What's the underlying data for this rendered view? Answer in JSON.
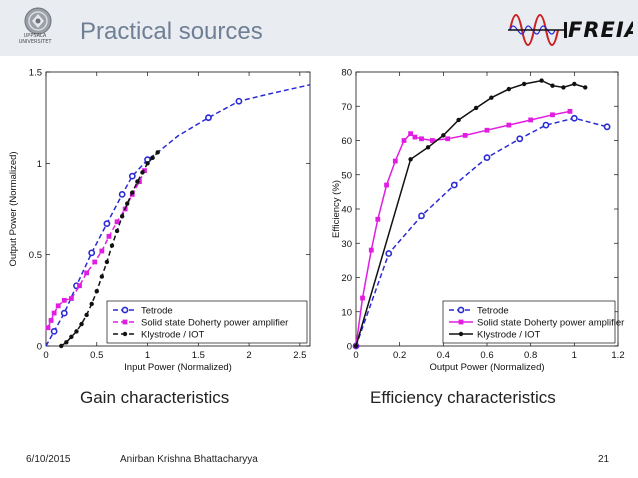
{
  "header": {
    "title": "Practical sources",
    "university_line1": "UPPSALA",
    "university_line2": "UNIVERSITET",
    "freia_logo_text": "FREIA"
  },
  "chart_data": [
    {
      "type": "line",
      "xlabel": "Input Power (Normalized)",
      "ylabel": "Output Power (Normalized)",
      "xlim": [
        0,
        2.6
      ],
      "ylim": [
        0,
        1.5
      ],
      "xticks": [
        "0",
        "0.5",
        "1",
        "1.5",
        "2",
        "2.5"
      ],
      "xtick_values": [
        0,
        0.5,
        1,
        1.5,
        2,
        2.5
      ],
      "yticks": [
        "0",
        "0.5",
        "1",
        "1.5"
      ],
      "ytick_values": [
        0,
        0.5,
        1,
        1.5
      ],
      "legend_position": "bottom-right",
      "series": [
        {
          "name": "Tetrode",
          "color": "#2a2ad6",
          "style": "dashed",
          "marker": "circle",
          "x": [
            0,
            0.08,
            0.18,
            0.3,
            0.45,
            0.6,
            0.75,
            0.85,
            1.0,
            1.1,
            1.3,
            1.6,
            1.9,
            2.2,
            2.6
          ],
          "y": [
            0,
            0.08,
            0.18,
            0.33,
            0.51,
            0.67,
            0.83,
            0.93,
            1.02,
            1.06,
            1.15,
            1.25,
            1.34,
            1.38,
            1.43
          ],
          "marked": [
            false,
            true,
            true,
            true,
            true,
            true,
            true,
            true,
            true,
            false,
            false,
            true,
            true,
            false,
            false
          ]
        },
        {
          "name": "Solid state Doherty power amplifier",
          "color": "#e11de1",
          "style": "dashed",
          "marker": "square",
          "x": [
            0.02,
            0.05,
            0.08,
            0.12,
            0.18,
            0.25,
            0.33,
            0.4,
            0.48,
            0.55,
            0.62,
            0.7,
            0.78,
            0.85,
            0.92,
            0.97
          ],
          "y": [
            0.1,
            0.14,
            0.18,
            0.22,
            0.25,
            0.26,
            0.33,
            0.4,
            0.46,
            0.52,
            0.6,
            0.68,
            0.75,
            0.83,
            0.9,
            0.96
          ],
          "marked": [
            true,
            true,
            true,
            true,
            true,
            true,
            true,
            true,
            true,
            true,
            true,
            true,
            true,
            true,
            true,
            true
          ]
        },
        {
          "name": "Klystrode / IOT",
          "color": "#111111",
          "style": "dashed",
          "marker": "dot",
          "x": [
            0.15,
            0.2,
            0.25,
            0.3,
            0.35,
            0.4,
            0.45,
            0.5,
            0.55,
            0.6,
            0.65,
            0.7,
            0.75,
            0.8,
            0.85,
            0.9,
            0.95,
            1.0,
            1.05,
            1.1
          ],
          "y": [
            0,
            0.02,
            0.05,
            0.08,
            0.12,
            0.17,
            0.23,
            0.3,
            0.38,
            0.46,
            0.55,
            0.63,
            0.71,
            0.78,
            0.84,
            0.9,
            0.95,
            1.0,
            1.03,
            1.06
          ],
          "marked": [
            true,
            true,
            true,
            true,
            true,
            true,
            true,
            true,
            true,
            true,
            true,
            true,
            true,
            true,
            true,
            true,
            true,
            true,
            true,
            true
          ]
        }
      ]
    },
    {
      "type": "line",
      "xlabel": "Output Power (Normalized)",
      "ylabel": "Efficiency (%)",
      "xlim": [
        0,
        1.2
      ],
      "ylim": [
        0,
        80
      ],
      "xticks": [
        "0",
        "0.2",
        "0.4",
        "0.6",
        "0.8",
        "1",
        "1.2"
      ],
      "xtick_values": [
        0,
        0.2,
        0.4,
        0.6,
        0.8,
        1.0,
        1.2
      ],
      "yticks": [
        "0",
        "10",
        "20",
        "30",
        "40",
        "50",
        "60",
        "70",
        "80"
      ],
      "ytick_values": [
        0,
        10,
        20,
        30,
        40,
        50,
        60,
        70,
        80
      ],
      "legend_position": "bottom-right",
      "series": [
        {
          "name": "Tetrode",
          "color": "#2a2ad6",
          "style": "dashed",
          "marker": "circle",
          "x": [
            0,
            0.15,
            0.3,
            0.45,
            0.6,
            0.75,
            0.87,
            1.0,
            1.15
          ],
          "y": [
            0,
            27,
            38,
            47,
            55,
            60.5,
            64.5,
            66.5,
            64
          ],
          "marked": [
            true,
            true,
            true,
            true,
            true,
            true,
            true,
            true,
            true
          ]
        },
        {
          "name": "Solid state Doherty power amplifier",
          "color": "#e11de1",
          "style": "solid",
          "marker": "square",
          "x": [
            0,
            0.03,
            0.07,
            0.1,
            0.14,
            0.18,
            0.22,
            0.25,
            0.27,
            0.3,
            0.35,
            0.42,
            0.5,
            0.6,
            0.7,
            0.8,
            0.9,
            0.98
          ],
          "y": [
            0,
            14,
            28,
            37,
            47,
            54,
            60,
            62,
            61,
            60.5,
            60,
            60.5,
            61.5,
            63,
            64.5,
            66,
            67.5,
            68.5
          ],
          "marked": [
            true,
            true,
            true,
            true,
            true,
            true,
            true,
            true,
            true,
            true,
            true,
            true,
            true,
            true,
            true,
            true,
            true,
            true
          ]
        },
        {
          "name": "Klystrode / IOT",
          "color": "#111111",
          "style": "solid",
          "marker": "dot",
          "x": [
            0,
            0.25,
            0.33,
            0.4,
            0.47,
            0.55,
            0.62,
            0.7,
            0.77,
            0.85,
            0.9,
            0.95,
            1.0,
            1.05
          ],
          "y": [
            0,
            54.5,
            58,
            61.5,
            66,
            69.5,
            72.5,
            75,
            76.5,
            77.5,
            76,
            75.5,
            76.5,
            75.5
          ],
          "marked": [
            true,
            true,
            true,
            true,
            true,
            true,
            true,
            true,
            true,
            true,
            true,
            true,
            true,
            true
          ]
        }
      ]
    }
  ],
  "captions": {
    "left": "Gain characteristics",
    "right": "Efficiency characteristics"
  },
  "footer": {
    "date": "6/10/2015",
    "author": "Anirban Krishna Bhattacharyya",
    "page_number": "21"
  }
}
